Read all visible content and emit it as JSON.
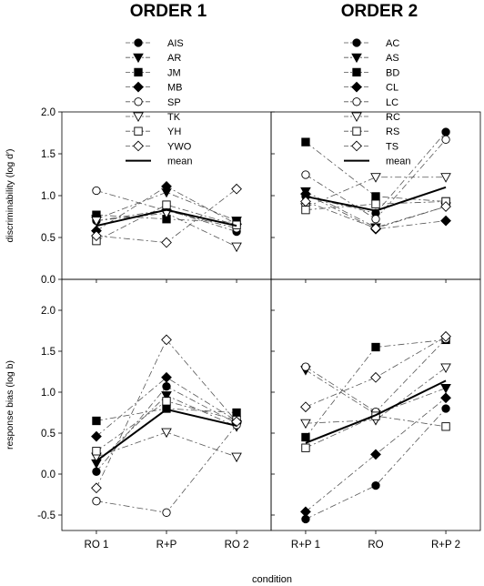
{
  "figure": {
    "order1_title": "ORDER 1",
    "order2_title": "ORDER 2",
    "xlabel": "condition"
  },
  "chart_data": [
    {
      "type": "line",
      "panel": "top-left",
      "ylabel": "discriminability (log d′)",
      "categories": [
        "RO 1",
        "R+P",
        "RO 2"
      ],
      "show_x_ticklabels": false,
      "ylim": [
        0.0,
        2.0
      ],
      "yticks": [
        "0.0",
        "0.5",
        "1.0",
        "1.5",
        "2.0"
      ],
      "legend_position": "top-center",
      "series": [
        {
          "name": "AIS",
          "marker": "circle-filled",
          "values": [
            0.7,
            0.83,
            0.57
          ]
        },
        {
          "name": "AR",
          "marker": "triangle-down-filled",
          "values": [
            0.72,
            1.04,
            0.7
          ]
        },
        {
          "name": "JM",
          "marker": "square-filled",
          "values": [
            0.77,
            0.72,
            0.68
          ]
        },
        {
          "name": "MB",
          "marker": "diamond-filled",
          "values": [
            0.58,
            1.11,
            0.66
          ]
        },
        {
          "name": "SP",
          "marker": "circle-open",
          "values": [
            1.06,
            0.82,
            0.61
          ]
        },
        {
          "name": "TK",
          "marker": "triangle-down-open",
          "values": [
            0.7,
            0.79,
            0.39
          ]
        },
        {
          "name": "YH",
          "marker": "square-open",
          "values": [
            0.46,
            0.89,
            0.65
          ]
        },
        {
          "name": "YWO",
          "marker": "diamond-open",
          "values": [
            0.52,
            0.44,
            1.08
          ]
        },
        {
          "name": "mean",
          "marker": "none",
          "values": [
            0.64,
            0.83,
            0.64
          ]
        }
      ]
    },
    {
      "type": "line",
      "panel": "top-right",
      "categories": [
        "R+P 1",
        "RO",
        "R+P 2"
      ],
      "show_x_ticklabels": false,
      "ylim": [
        0.0,
        2.0
      ],
      "legend_position": "top-center",
      "series": [
        {
          "name": "AC",
          "marker": "circle-filled",
          "values": [
            0.99,
            0.79,
            1.76
          ]
        },
        {
          "name": "AS",
          "marker": "triangle-down-filled",
          "values": [
            1.05,
            0.62,
            0.87
          ]
        },
        {
          "name": "BD",
          "marker": "square-filled",
          "values": [
            1.64,
            0.99,
            0.93
          ]
        },
        {
          "name": "CL",
          "marker": "diamond-filled",
          "values": [
            1.02,
            0.6,
            0.7
          ]
        },
        {
          "name": "LC",
          "marker": "circle-open",
          "values": [
            1.25,
            0.72,
            1.67
          ]
        },
        {
          "name": "RC",
          "marker": "triangle-down-open",
          "values": [
            0.86,
            1.22,
            1.22
          ]
        },
        {
          "name": "RS",
          "marker": "square-open",
          "values": [
            0.83,
            0.9,
            0.93
          ]
        },
        {
          "name": "TS",
          "marker": "diamond-open",
          "values": [
            0.93,
            0.61,
            0.87
          ]
        },
        {
          "name": "mean",
          "marker": "none",
          "values": [
            0.99,
            0.82,
            1.1
          ]
        }
      ]
    },
    {
      "type": "line",
      "panel": "bottom-left",
      "ylabel": "response bias (log b)",
      "categories": [
        "RO 1",
        "R+P",
        "RO 2"
      ],
      "show_x_ticklabels": true,
      "ylim": [
        -0.6,
        2.0
      ],
      "yticks": [
        "-0.5",
        "0.0",
        "0.5",
        "1.0",
        "1.5",
        "2.0"
      ],
      "series": [
        {
          "name": "AIS",
          "marker": "circle-filled",
          "values": [
            0.03,
            1.07,
            0.62
          ]
        },
        {
          "name": "AR",
          "marker": "triangle-down-filled",
          "values": [
            0.13,
            0.96,
            0.58
          ]
        },
        {
          "name": "JM",
          "marker": "square-filled",
          "values": [
            0.65,
            0.8,
            0.75
          ]
        },
        {
          "name": "MB",
          "marker": "diamond-filled",
          "values": [
            0.46,
            1.18,
            0.65
          ]
        },
        {
          "name": "SP",
          "marker": "circle-open",
          "values": [
            -0.33,
            -0.47,
            0.6
          ]
        },
        {
          "name": "TK",
          "marker": "triangle-down-open",
          "values": [
            0.21,
            0.51,
            0.21
          ]
        },
        {
          "name": "YH",
          "marker": "square-open",
          "values": [
            0.28,
            0.89,
            0.66
          ]
        },
        {
          "name": "YWO",
          "marker": "diamond-open",
          "values": [
            -0.17,
            1.64,
            0.64
          ]
        },
        {
          "name": "mean",
          "marker": "none",
          "values": [
            0.16,
            0.79,
            0.59
          ]
        }
      ]
    },
    {
      "type": "line",
      "panel": "bottom-right",
      "categories": [
        "R+P 1",
        "RO",
        "R+P 2"
      ],
      "show_x_ticklabels": true,
      "ylim": [
        -0.6,
        2.0
      ],
      "series": [
        {
          "name": "AC",
          "marker": "circle-filled",
          "values": [
            -0.55,
            -0.14,
            0.8
          ]
        },
        {
          "name": "AS",
          "marker": "triangle-down-filled",
          "values": [
            1.27,
            0.73,
            1.05
          ]
        },
        {
          "name": "BD",
          "marker": "square-filled",
          "values": [
            0.45,
            1.55,
            1.64
          ]
        },
        {
          "name": "CL",
          "marker": "diamond-filled",
          "values": [
            -0.46,
            0.24,
            0.93
          ]
        },
        {
          "name": "LC",
          "marker": "circle-open",
          "values": [
            1.31,
            0.76,
            1.65
          ]
        },
        {
          "name": "RC",
          "marker": "triangle-down-open",
          "values": [
            0.62,
            0.66,
            1.3
          ]
        },
        {
          "name": "RS",
          "marker": "square-open",
          "values": [
            0.32,
            0.71,
            0.58
          ]
        },
        {
          "name": "TS",
          "marker": "diamond-open",
          "values": [
            0.82,
            1.18,
            1.68
          ]
        },
        {
          "name": "mean",
          "marker": "none",
          "values": [
            0.38,
            0.72,
            1.14
          ]
        }
      ]
    }
  ]
}
